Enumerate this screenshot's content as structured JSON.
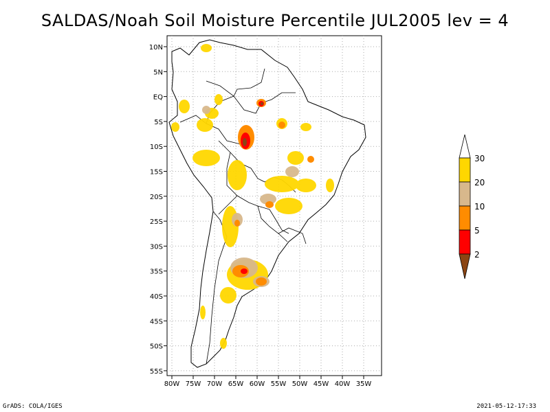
{
  "title": "SALDAS/Noah Soil Moisture Percentile JUL2005 lev = 4",
  "footer": {
    "left": "GrADS: COLA/IGES",
    "right": "2021-05-12-17:33"
  },
  "axes": {
    "lat_labels": [
      "10N",
      "5N",
      "EQ",
      "5S",
      "10S",
      "15S",
      "20S",
      "25S",
      "30S",
      "35S",
      "40S",
      "45S",
      "50S",
      "55S"
    ],
    "lon_labels": [
      "80W",
      "75W",
      "70W",
      "65W",
      "60W",
      "55W",
      "50W",
      "45W",
      "40W",
      "35W"
    ]
  },
  "legend": {
    "labels": [
      "30",
      "20",
      "10",
      "5",
      "2"
    ],
    "colors": {
      "c30": "#ffffff",
      "c20_30": "#ffd700",
      "c10_20": "#d8b88c",
      "c5_10": "#ff8c00",
      "c2_5": "#ff0000",
      "c_lt2": "#8b4513"
    }
  }
}
